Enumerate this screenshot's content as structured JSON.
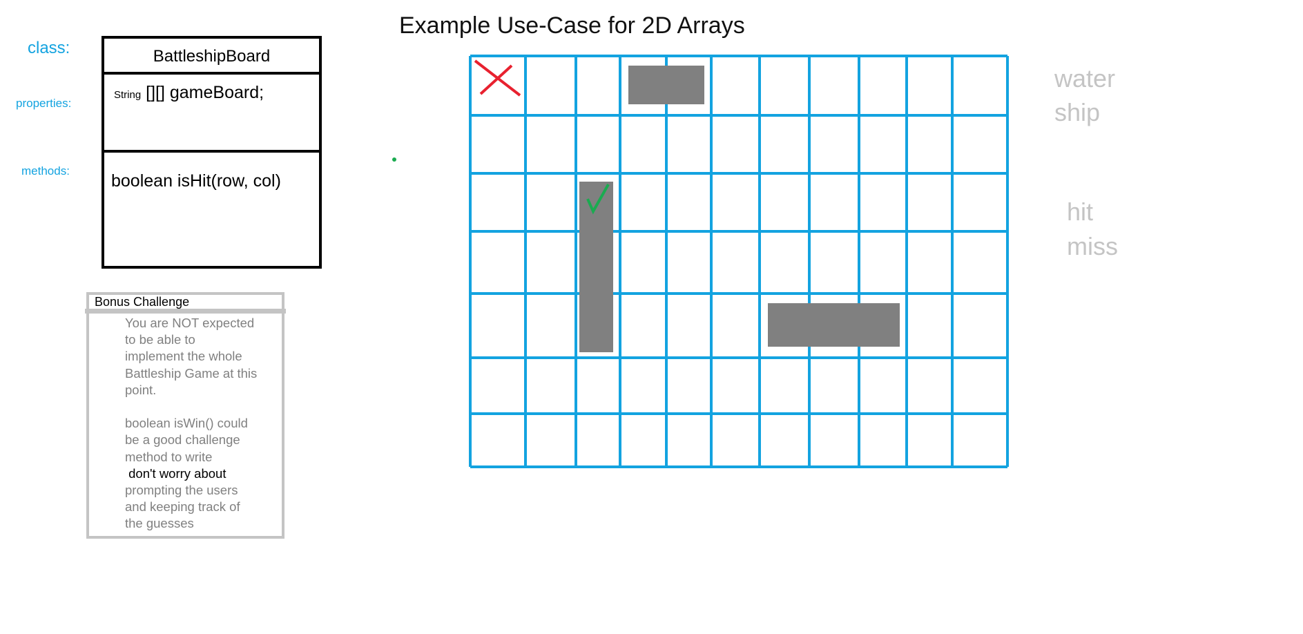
{
  "title": "Example Use-Case for 2D Arrays",
  "labels": {
    "class": "class:",
    "properties": "properties:",
    "methods": "methods:"
  },
  "uml": {
    "class_name": "BattleshipBoard",
    "property_type": "String",
    "property_decl": "[][] gameBoard;",
    "method": "boolean isHit(row, col)"
  },
  "bonus": {
    "title": "Bonus Challenge",
    "line1": "You are NOT expected\nto be able to\nimplement the whole\nBattleship Game at this\npoint.\n\nboolean isWin() could\nbe a good challenge\nmethod to write\n",
    "highlight": " don't worry about",
    "line2": "\nprompting the users\nand keeping track of\nthe guesses"
  },
  "legend": {
    "water": "water",
    "ship": "ship",
    "hit": "hit",
    "miss": "miss"
  },
  "board": {
    "rows": 7,
    "cols": 11,
    "ships": [
      {
        "row": 0,
        "col_start": 3,
        "col_end": 4,
        "orientation": "horizontal"
      },
      {
        "col": 2,
        "row_start": 2,
        "row_end": 4,
        "orientation": "vertical"
      },
      {
        "row": 4,
        "col_start": 6,
        "col_end": 8,
        "orientation": "horizontal"
      }
    ],
    "marks": [
      {
        "type": "miss",
        "row": 0,
        "col": 0
      },
      {
        "type": "hit",
        "row": 2,
        "col": 2
      }
    ]
  },
  "colors": {
    "grid": "#13a3e0",
    "ship": "#808080",
    "miss_mark": "#e8212f",
    "hit_mark": "#1aab50",
    "legend": "#c4c4c4"
  }
}
